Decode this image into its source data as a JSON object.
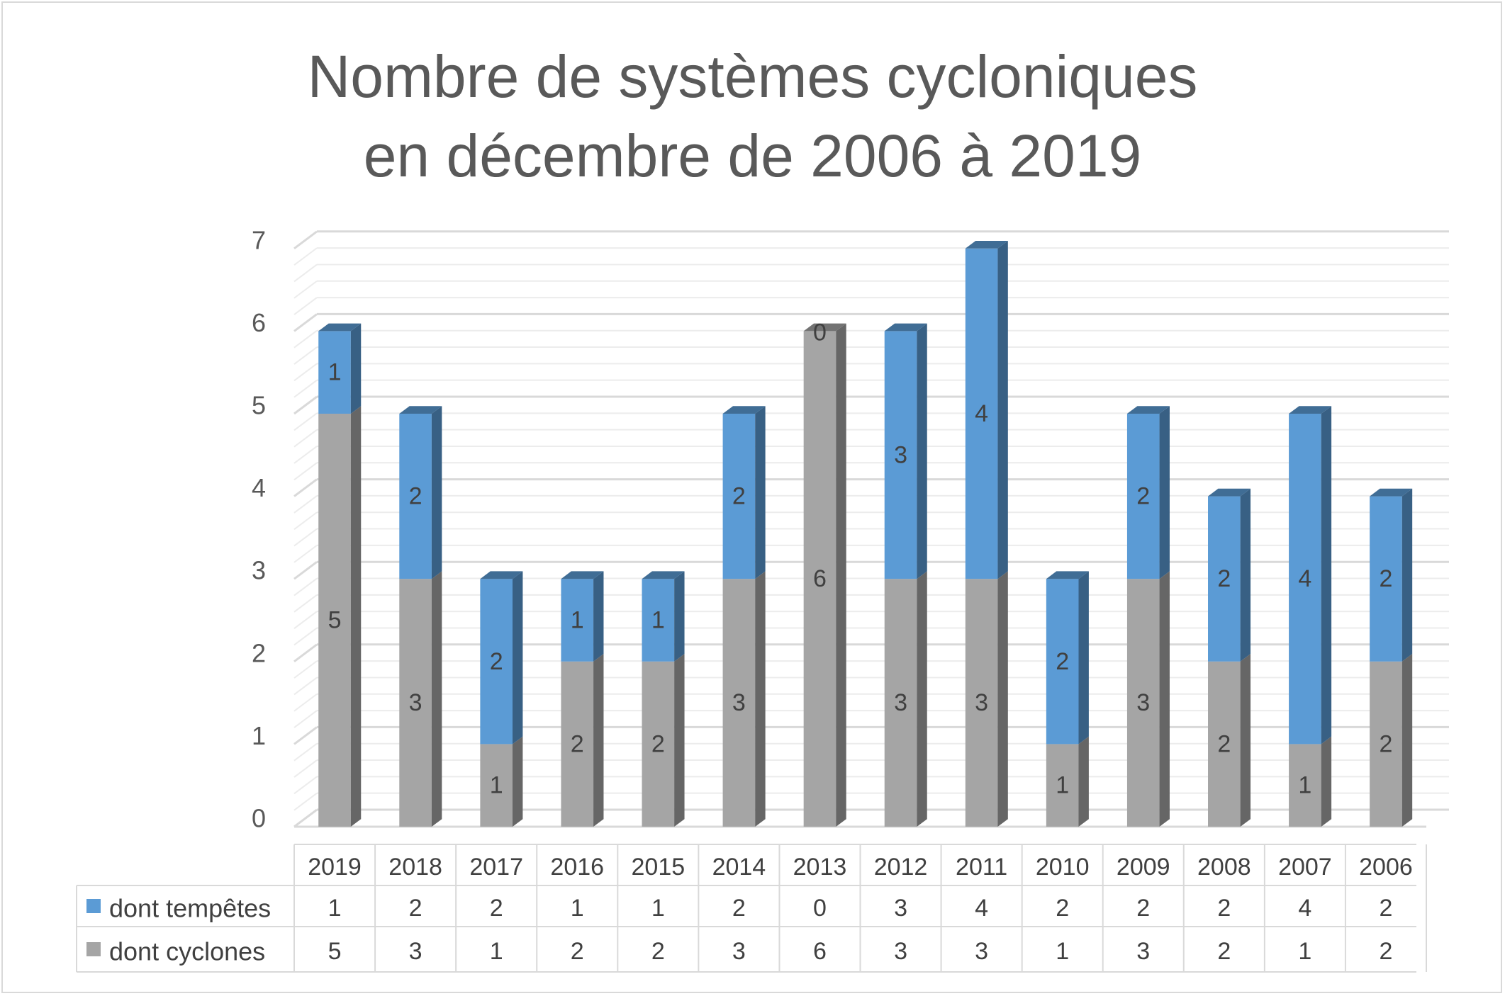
{
  "chart_data": {
    "type": "bar",
    "stacked": true,
    "three_d": true,
    "title": "Nombre de systèmes cycloniques\nen décembre de 2006 à 2019",
    "categories": [
      "2019",
      "2018",
      "2017",
      "2016",
      "2015",
      "2014",
      "2013",
      "2012",
      "2011",
      "2010",
      "2009",
      "2008",
      "2007",
      "2006"
    ],
    "series": [
      {
        "name": "dont tempêtes",
        "color": "#5b9bd5",
        "values": [
          1,
          2,
          2,
          1,
          1,
          2,
          0,
          3,
          4,
          2,
          2,
          2,
          4,
          2
        ]
      },
      {
        "name": "dont cyclones",
        "color": "#a5a5a5",
        "values": [
          5,
          3,
          1,
          2,
          2,
          3,
          6,
          3,
          3,
          1,
          3,
          2,
          1,
          2
        ]
      }
    ],
    "ylim": [
      0,
      7
    ],
    "yticks": [
      0,
      1,
      2,
      3,
      4,
      5,
      6,
      7
    ],
    "grid": true,
    "data_table": true,
    "legend": "data-table-left"
  }
}
